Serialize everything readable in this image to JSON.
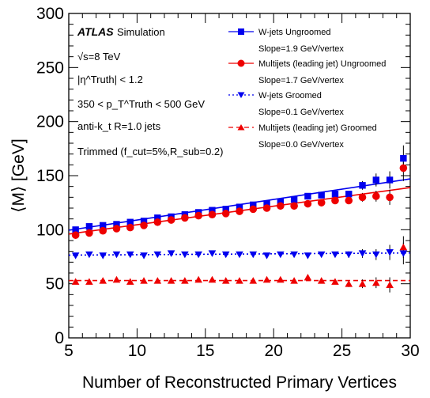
{
  "chart_data": {
    "type": "scatter",
    "xlabel": "Number of Reconstructed Primary Vertices",
    "ylabel": "⟨M⟩ [GeV]",
    "xlim": [
      5,
      30
    ],
    "ylim": [
      0,
      300
    ],
    "x_ticks": [
      5,
      10,
      15,
      20,
      25,
      30
    ],
    "y_ticks": [
      0,
      50,
      100,
      150,
      200,
      250,
      300
    ],
    "grid": false,
    "legend_position": "top-right",
    "annotations": {
      "atlas": "ATLAS",
      "simulation": "Simulation",
      "energy": "√s=8 TeV",
      "eta_cut": "|η^Truth| < 1.2",
      "pt_cut": "350 < p_T^Truth < 500 GeV",
      "algorithm": "anti-k_t R=1.0 jets",
      "trimming": "Trimmed (f_cut=5%,R_sub=0.2)"
    },
    "x": [
      5.5,
      6.5,
      7.5,
      8.5,
      9.5,
      10.5,
      11.5,
      12.5,
      13.5,
      14.5,
      15.5,
      16.5,
      17.5,
      18.5,
      19.5,
      20.5,
      21.5,
      22.5,
      23.5,
      24.5,
      25.5,
      26.5,
      27.5,
      28.5,
      29.5
    ],
    "series": [
      {
        "name": "W-jets Ungroomed",
        "slope_label": "Slope=1.9 GeV/vertex",
        "color": "#0000ee",
        "marker": "square",
        "line": "solid",
        "values": [
          100,
          103,
          104,
          105,
          107,
          108,
          111,
          112,
          114,
          116,
          118,
          119,
          121,
          123,
          124,
          126,
          128,
          131,
          132,
          133,
          133,
          141,
          146,
          146,
          166
        ],
        "errors": [
          2,
          1.5,
          1.5,
          1.5,
          1.5,
          1.5,
          1.5,
          1.5,
          1.5,
          1.5,
          1.5,
          1.5,
          1.5,
          1.5,
          1.5,
          1.5,
          1.5,
          2,
          2,
          2,
          3,
          4,
          6,
          8,
          12
        ],
        "fit": [
          [
            5,
            99.5
          ],
          [
            30,
            147
          ]
        ]
      },
      {
        "name": "Multijets (leading jet) Ungroomed",
        "slope_label": "Slope=1.7 GeV/vertex",
        "color": "#ee0000",
        "marker": "circle",
        "line": "solid",
        "values": [
          95,
          97,
          99,
          101,
          102,
          104,
          107,
          109,
          111,
          113,
          114,
          115,
          117,
          119,
          120,
          122,
          122,
          124,
          125,
          127,
          127,
          130,
          131,
          130,
          157
        ],
        "errors": [
          1.5,
          1.5,
          1.5,
          1.5,
          1.5,
          1.5,
          1.5,
          1.5,
          1.5,
          1.5,
          1.5,
          1.5,
          1.5,
          1.5,
          1.5,
          1.5,
          1.5,
          2,
          2,
          2,
          3,
          4,
          5,
          7,
          12
        ],
        "fit": [
          [
            5,
            96
          ],
          [
            30,
            139
          ]
        ]
      },
      {
        "name": "W-jets Groomed",
        "slope_label": "Slope=0.1 GeV/vertex",
        "color": "#0000ee",
        "marker": "triangle-down",
        "line": "dotted",
        "values": [
          76,
          77,
          76,
          77,
          77,
          76,
          77,
          78,
          77,
          77,
          78,
          77,
          77,
          77,
          76,
          77,
          77,
          76,
          77,
          77,
          77,
          78,
          77,
          79,
          78
        ],
        "errors": [
          1.5,
          1.5,
          1.5,
          1.5,
          1.5,
          1.5,
          1.5,
          1.5,
          1.5,
          1.5,
          1.5,
          1.5,
          1.5,
          1.5,
          1.5,
          1.5,
          1.5,
          1.5,
          2,
          2,
          3,
          4,
          5,
          7,
          10
        ],
        "fit": [
          [
            5,
            76.5
          ],
          [
            30,
            78.5
          ]
        ]
      },
      {
        "name": "Multijets (leading jet) Groomed",
        "slope_label": "Slope=0.0 GeV/vertex",
        "color": "#ee0000",
        "marker": "triangle-up",
        "line": "dashed",
        "values": [
          52,
          52,
          53,
          54,
          52,
          53,
          53,
          53,
          53,
          54,
          54,
          53,
          53,
          53,
          54,
          54,
          53,
          56,
          53,
          52,
          50,
          50,
          51,
          49,
          84
        ],
        "errors": [
          1.5,
          1.5,
          1.5,
          1.5,
          1.5,
          1.5,
          1.5,
          1.5,
          1.5,
          1.5,
          1.5,
          1.5,
          1.5,
          1.5,
          1.5,
          1.5,
          1.5,
          2,
          2,
          2,
          3,
          4,
          5,
          7,
          10
        ],
        "fit": [
          [
            5,
            53
          ],
          [
            30,
            53
          ]
        ]
      }
    ]
  }
}
